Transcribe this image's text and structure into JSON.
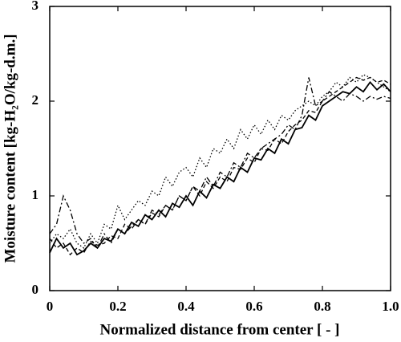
{
  "chart_data": {
    "type": "line",
    "xlabel": "Normalized distance from center [ - ]",
    "ylabel": "Moisture content [kg-H₂O/kg-d.m.]",
    "x": [
      0,
      0.02,
      0.04,
      0.06,
      0.08,
      0.1,
      0.12,
      0.14,
      0.16,
      0.18,
      0.2,
      0.22,
      0.24,
      0.26,
      0.28,
      0.3,
      0.32,
      0.34,
      0.36,
      0.38,
      0.4,
      0.42,
      0.44,
      0.46,
      0.48,
      0.5,
      0.52,
      0.54,
      0.56,
      0.58,
      0.6,
      0.62,
      0.64,
      0.66,
      0.68,
      0.7,
      0.72,
      0.74,
      0.76,
      0.78,
      0.8,
      0.82,
      0.84,
      0.86,
      0.88,
      0.9,
      0.92,
      0.94,
      0.96,
      0.98,
      1.0
    ],
    "series": [
      {
        "color": "#000000",
        "style": "solid",
        "values": [
          0.4,
          0.55,
          0.45,
          0.5,
          0.38,
          0.42,
          0.5,
          0.45,
          0.55,
          0.52,
          0.65,
          0.6,
          0.72,
          0.68,
          0.8,
          0.75,
          0.85,
          0.78,
          0.92,
          0.88,
          1.0,
          0.9,
          1.05,
          0.98,
          1.12,
          1.08,
          1.2,
          1.15,
          1.3,
          1.25,
          1.4,
          1.38,
          1.5,
          1.45,
          1.6,
          1.55,
          1.7,
          1.72,
          1.85,
          1.8,
          1.95,
          2.0,
          2.05,
          2.1,
          2.08,
          2.15,
          2.1,
          2.2,
          2.12,
          2.18,
          2.1
        ]
      },
      {
        "color": "#000000",
        "style": "dashed",
        "values": [
          0.55,
          0.45,
          0.5,
          0.38,
          0.45,
          0.4,
          0.52,
          0.48,
          0.5,
          0.58,
          0.55,
          0.7,
          0.65,
          0.75,
          0.7,
          0.82,
          0.78,
          0.9,
          0.85,
          1.0,
          0.95,
          1.1,
          1.0,
          1.15,
          1.08,
          1.2,
          1.15,
          1.3,
          1.28,
          1.4,
          1.35,
          1.5,
          1.48,
          1.6,
          1.55,
          1.68,
          1.75,
          1.8,
          1.9,
          1.88,
          2.0,
          2.05,
          2.1,
          2.15,
          2.2,
          2.25,
          2.22,
          2.25,
          2.2,
          2.22,
          2.18
        ]
      },
      {
        "color": "#000000",
        "style": "dashdot",
        "values": [
          0.6,
          0.7,
          1.0,
          0.85,
          0.6,
          0.5,
          0.55,
          0.45,
          0.6,
          0.5,
          0.65,
          0.6,
          0.68,
          0.75,
          0.7,
          0.85,
          0.8,
          0.9,
          0.85,
          1.0,
          0.95,
          1.1,
          1.05,
          1.2,
          1.1,
          1.25,
          1.2,
          1.35,
          1.3,
          1.45,
          1.4,
          1.5,
          1.55,
          1.6,
          1.65,
          1.75,
          1.7,
          1.85,
          2.25,
          1.95,
          2.0,
          2.1,
          2.05,
          2.0,
          2.08,
          2.05,
          2.0,
          2.05,
          2.02,
          2.05,
          2.03
        ]
      },
      {
        "color": "#000000",
        "style": "dotted",
        "values": [
          0.5,
          0.6,
          0.55,
          0.65,
          0.5,
          0.45,
          0.6,
          0.5,
          0.7,
          0.65,
          0.9,
          0.75,
          0.85,
          0.95,
          0.9,
          1.05,
          1.0,
          1.2,
          1.1,
          1.25,
          1.3,
          1.2,
          1.4,
          1.3,
          1.5,
          1.45,
          1.6,
          1.5,
          1.7,
          1.6,
          1.75,
          1.65,
          1.8,
          1.7,
          1.85,
          1.8,
          1.9,
          1.95,
          2.0,
          1.95,
          2.05,
          2.1,
          2.2,
          2.15,
          2.25,
          2.2,
          2.28,
          2.25,
          2.2,
          2.15,
          2.1
        ]
      }
    ],
    "xlim": [
      0,
      1
    ],
    "xticks": [
      0,
      0.2,
      0.4,
      0.6,
      0.8,
      {
        "value": 1,
        "label": "1.0"
      }
    ],
    "ylim": [
      0,
      3
    ],
    "yticks": [
      0,
      1,
      2,
      3
    ]
  }
}
